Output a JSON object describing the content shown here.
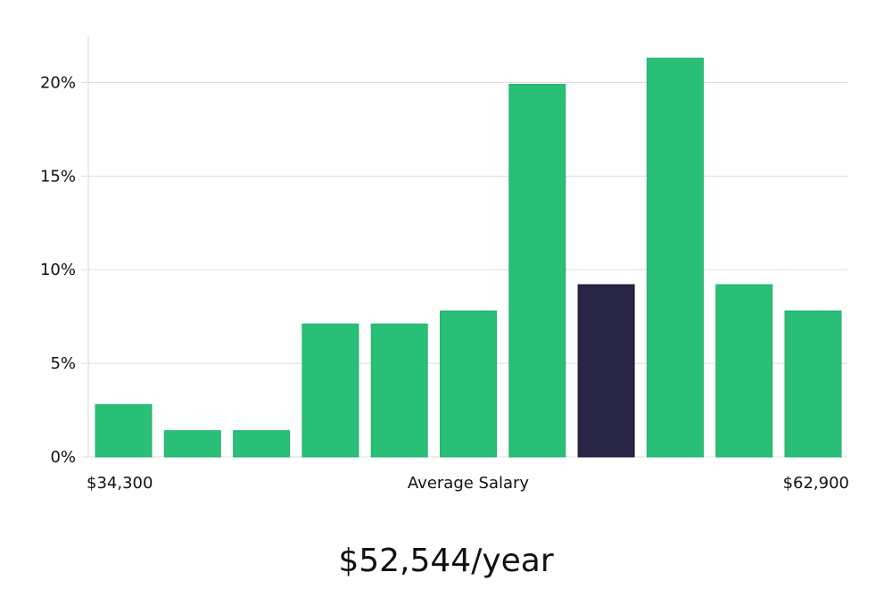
{
  "chart_data": {
    "type": "bar",
    "title": "",
    "xlabel": "Average Salary",
    "ylabel": "",
    "x_min_label": "$34,300",
    "x_max_label": "$62,900",
    "categories": [
      "1",
      "2",
      "3",
      "4",
      "5",
      "6",
      "7",
      "8",
      "9",
      "10",
      "11"
    ],
    "values": [
      2.8,
      1.4,
      1.4,
      7.1,
      7.1,
      7.8,
      19.9,
      9.2,
      21.3,
      9.2,
      7.8
    ],
    "highlight_index": 7,
    "ylim": [
      0,
      22.5
    ],
    "yticks": [
      0,
      5,
      10,
      15,
      20
    ],
    "ytick_labels": [
      "0%",
      "5%",
      "10%",
      "15%",
      "20%"
    ],
    "grid": true,
    "colors": {
      "bar": "#29bf77",
      "highlight": "#272444",
      "grid": "#dddddd",
      "axis": "#d9d9d9"
    }
  },
  "salary": {
    "value": "$52,544/year"
  }
}
